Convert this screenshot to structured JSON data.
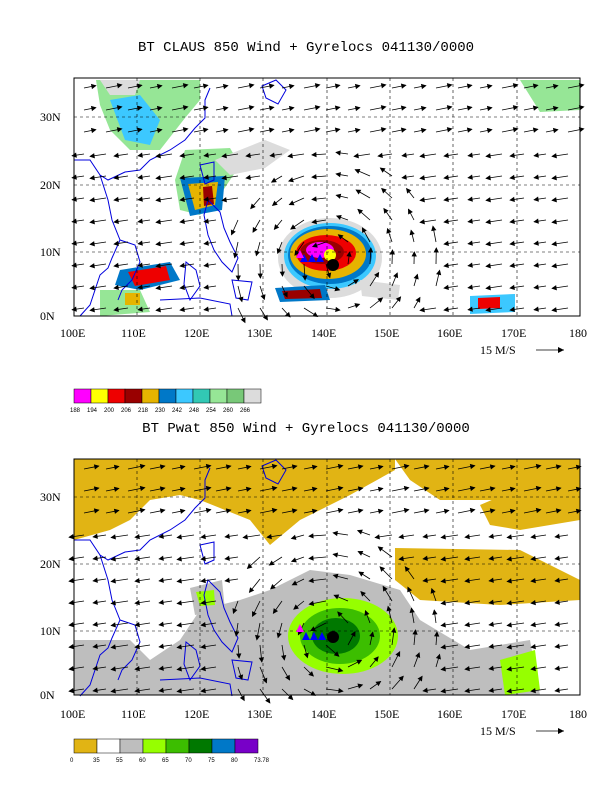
{
  "panels": [
    {
      "title": "BT CLAUS 850 Wind + Gyrelocs 041130/0000",
      "legend": {
        "labels": [
          "188",
          "194",
          "200",
          "206",
          "218",
          "230",
          "242",
          "248",
          "254",
          "260",
          "266"
        ],
        "colors": [
          "#ff00ff",
          "#ffff00",
          "#ee0000",
          "#990000",
          "#e6b400",
          "#0078c8",
          "#3cc8ff",
          "#32c8b4",
          "#96e696",
          "#78c878",
          "#dcdcdc"
        ]
      }
    },
    {
      "title": "BT Pwat 850 Wind + Gyrelocs 041130/0000",
      "legend": {
        "labels": [
          "0",
          "35",
          "55",
          "60",
          "65",
          "70",
          "75",
          "80",
          "73.78"
        ],
        "colors": [
          "#e1b414",
          "#ffffff",
          "#bebebe",
          "#96ff00",
          "#3cbe00",
          "#007800",
          "#0078c8",
          "#7800c8"
        ]
      }
    }
  ],
  "x_ticks": [
    "100E",
    "110E",
    "120E",
    "130E",
    "140E",
    "150E",
    "160E",
    "170E",
    "180"
  ],
  "y_ticks": [
    "0N",
    "10N",
    "20N",
    "30N"
  ],
  "vector_ref": "15 M/S",
  "colors": {
    "coast": "#0000dd",
    "marker": "#000000",
    "arrow": "#000000"
  }
}
